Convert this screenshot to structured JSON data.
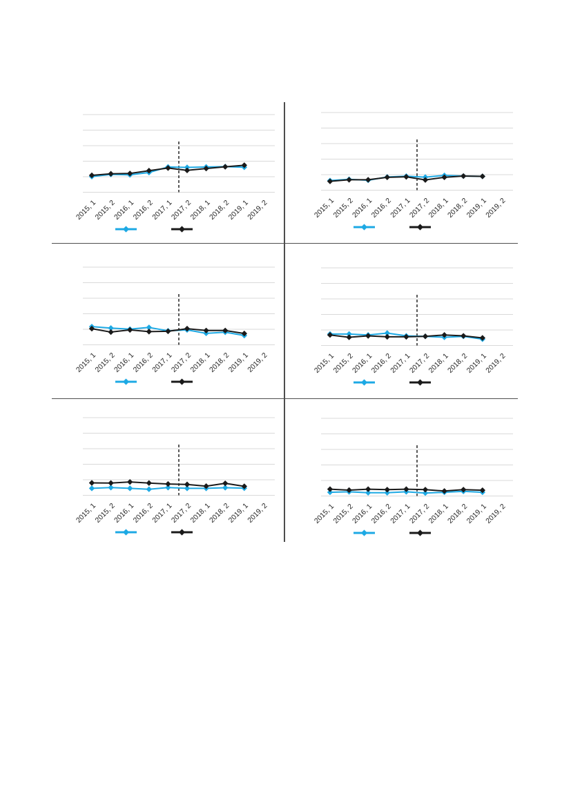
{
  "page": {
    "background": "#ffffff"
  },
  "colors": {
    "series_cyan": "#1da9e4",
    "series_black": "#1a1a1a",
    "gridline": "#d9d9d9",
    "divider": "#4d4d4d",
    "reference_line": "#000000",
    "tick_label": "#262626"
  },
  "grid_layout": {
    "rows": 3,
    "cols": 2,
    "panel_count": 6
  },
  "x_categories": [
    "2015, 1",
    "2015, 2",
    "2016, 1",
    "2016, 2",
    "2017, 1",
    "2017, 2",
    "2018, 1",
    "2018, 2",
    "2019, 1",
    "2019, 2"
  ],
  "chart_data": [
    {
      "type": "line",
      "panel": "top-left",
      "title": "",
      "xlabel": "",
      "ylabel": "",
      "y_axis_tick_labels": "none visible",
      "gridlines": 6,
      "ylim": [
        0,
        5
      ],
      "y_values_unit": "gridline units above bottom gridline",
      "categories": [
        "2015, 1",
        "2015, 2",
        "2016, 1",
        "2016, 2",
        "2017, 1",
        "2017, 2",
        "2018, 1",
        "2018, 2",
        "2019, 1",
        "2019, 2"
      ],
      "marker": "diamond",
      "reference_line": {
        "style": "dashed-vertical",
        "between": [
          "2017, 1",
          "2017, 2"
        ]
      },
      "legend": {
        "position": "bottom",
        "entries": [
          {
            "name": "series-cyan",
            "label": ""
          },
          {
            "name": "series-black",
            "label": ""
          }
        ]
      },
      "series": [
        {
          "name": "series-cyan",
          "color": "#1da9e4",
          "values": [
            1.01,
            1.15,
            1.12,
            1.27,
            1.63,
            1.6,
            1.63,
            1.65,
            1.61,
            null
          ]
        },
        {
          "name": "series-black",
          "color": "#1a1a1a",
          "values": [
            1.09,
            1.19,
            1.21,
            1.39,
            1.56,
            1.41,
            1.53,
            1.64,
            1.74,
            null
          ]
        }
      ]
    },
    {
      "type": "line",
      "panel": "top-right",
      "title": "",
      "xlabel": "",
      "ylabel": "",
      "y_axis_tick_labels": "none visible",
      "gridlines": 6,
      "ylim": [
        0,
        5
      ],
      "y_values_unit": "gridline units above bottom gridline",
      "categories": [
        "2015, 1",
        "2015, 2",
        "2016, 1",
        "2016, 2",
        "2017, 1",
        "2017, 2",
        "2018, 1",
        "2018, 2",
        "2019, 1",
        "2019, 2"
      ],
      "marker": "diamond",
      "reference_line": {
        "style": "dashed-vertical",
        "between": [
          "2017, 1",
          "2017, 2"
        ]
      },
      "legend": {
        "position": "bottom",
        "entries": [
          {
            "name": "series-cyan",
            "label": ""
          },
          {
            "name": "series-black",
            "label": ""
          }
        ]
      },
      "series": [
        {
          "name": "series-cyan",
          "color": "#1da9e4",
          "values": [
            0.62,
            0.7,
            0.64,
            0.85,
            0.9,
            0.84,
            0.95,
            0.91,
            0.89,
            null
          ]
        },
        {
          "name": "series-black",
          "color": "#1a1a1a",
          "values": [
            0.57,
            0.67,
            0.67,
            0.83,
            0.86,
            0.66,
            0.83,
            0.91,
            0.89,
            null
          ]
        }
      ]
    },
    {
      "type": "line",
      "panel": "middle-left",
      "title": "",
      "xlabel": "",
      "ylabel": "",
      "y_axis_tick_labels": "none visible",
      "gridlines": 6,
      "ylim": [
        0,
        5
      ],
      "y_values_unit": "gridline units above bottom gridline",
      "categories": [
        "2015, 1",
        "2015, 2",
        "2016, 1",
        "2016, 2",
        "2017, 1",
        "2017, 2",
        "2018, 1",
        "2018, 2",
        "2019, 1",
        "2019, 2"
      ],
      "marker": "diamond",
      "reference_line": {
        "style": "dashed-vertical",
        "between": [
          "2017, 1",
          "2017, 2"
        ]
      },
      "legend": {
        "position": "bottom",
        "entries": [
          {
            "name": "series-cyan",
            "label": ""
          },
          {
            "name": "series-black",
            "label": ""
          }
        ]
      },
      "series": [
        {
          "name": "series-cyan",
          "color": "#1da9e4",
          "values": [
            1.17,
            1.08,
            1.01,
            1.12,
            0.9,
            0.96,
            0.74,
            0.81,
            0.6,
            null
          ]
        },
        {
          "name": "series-black",
          "color": "#1a1a1a",
          "values": [
            1.04,
            0.82,
            0.96,
            0.85,
            0.87,
            1.04,
            0.92,
            0.92,
            0.73,
            null
          ]
        }
      ]
    },
    {
      "type": "line",
      "panel": "middle-right",
      "title": "",
      "xlabel": "",
      "ylabel": "",
      "y_axis_tick_labels": "none visible",
      "gridlines": 6,
      "ylim": [
        0,
        5
      ],
      "y_values_unit": "gridline units above bottom gridline",
      "categories": [
        "2015, 1",
        "2015, 2",
        "2016, 1",
        "2016, 2",
        "2017, 1",
        "2017, 2",
        "2018, 1",
        "2018, 2",
        "2019, 1",
        "2019, 2"
      ],
      "marker": "diamond",
      "reference_line": {
        "style": "dashed-vertical",
        "between": [
          "2017, 1",
          "2017, 2"
        ]
      },
      "legend": {
        "position": "bottom",
        "entries": [
          {
            "name": "series-cyan",
            "label": ""
          },
          {
            "name": "series-black",
            "label": ""
          }
        ]
      },
      "series": [
        {
          "name": "series-cyan",
          "color": "#1da9e4",
          "values": [
            0.74,
            0.74,
            0.68,
            0.8,
            0.62,
            0.59,
            0.53,
            0.59,
            0.41,
            null
          ]
        },
        {
          "name": "series-black",
          "color": "#1a1a1a",
          "values": [
            0.68,
            0.53,
            0.62,
            0.56,
            0.56,
            0.59,
            0.68,
            0.62,
            0.49,
            null
          ]
        }
      ]
    },
    {
      "type": "line",
      "panel": "bottom-left",
      "title": "",
      "xlabel": "",
      "ylabel": "",
      "y_axis_tick_labels": "none visible",
      "gridlines": 6,
      "ylim": [
        0,
        5
      ],
      "y_values_unit": "gridline units above bottom gridline",
      "categories": [
        "2015, 1",
        "2015, 2",
        "2016, 1",
        "2016, 2",
        "2017, 1",
        "2017, 2",
        "2018, 1",
        "2018, 2",
        "2019, 1",
        "2019, 2"
      ],
      "marker": "diamond",
      "reference_line": {
        "style": "dashed-vertical",
        "between": [
          "2017, 1",
          "2017, 2"
        ]
      },
      "legend": {
        "position": "bottom",
        "entries": [
          {
            "name": "series-cyan",
            "label": ""
          },
          {
            "name": "series-black",
            "label": ""
          }
        ]
      },
      "series": [
        {
          "name": "series-cyan",
          "color": "#1da9e4",
          "values": [
            0.45,
            0.5,
            0.45,
            0.39,
            0.5,
            0.45,
            0.45,
            0.49,
            0.46,
            null
          ]
        },
        {
          "name": "series-black",
          "color": "#1a1a1a",
          "values": [
            0.8,
            0.79,
            0.86,
            0.79,
            0.73,
            0.7,
            0.59,
            0.77,
            0.58,
            null
          ]
        }
      ]
    },
    {
      "type": "line",
      "panel": "bottom-right",
      "title": "",
      "xlabel": "",
      "ylabel": "",
      "y_axis_tick_labels": "none visible",
      "gridlines": 6,
      "ylim": [
        0,
        5
      ],
      "y_values_unit": "gridline units above bottom gridline",
      "categories": [
        "2015, 1",
        "2015, 2",
        "2016, 1",
        "2016, 2",
        "2017, 1",
        "2017, 2",
        "2018, 1",
        "2018, 2",
        "2019, 1",
        "2019, 2"
      ],
      "marker": "diamond",
      "reference_line": {
        "style": "dashed-vertical",
        "between": [
          "2017, 1",
          "2017, 2"
        ]
      },
      "legend": {
        "position": "bottom",
        "entries": [
          {
            "name": "series-cyan",
            "label": ""
          },
          {
            "name": "series-black",
            "label": ""
          }
        ]
      },
      "series": [
        {
          "name": "series-cyan",
          "color": "#1da9e4",
          "values": [
            0.24,
            0.27,
            0.21,
            0.21,
            0.27,
            0.19,
            0.24,
            0.3,
            0.24,
            null
          ]
        },
        {
          "name": "series-black",
          "color": "#1a1a1a",
          "values": [
            0.44,
            0.38,
            0.44,
            0.41,
            0.44,
            0.41,
            0.32,
            0.41,
            0.37,
            null
          ]
        }
      ]
    }
  ]
}
